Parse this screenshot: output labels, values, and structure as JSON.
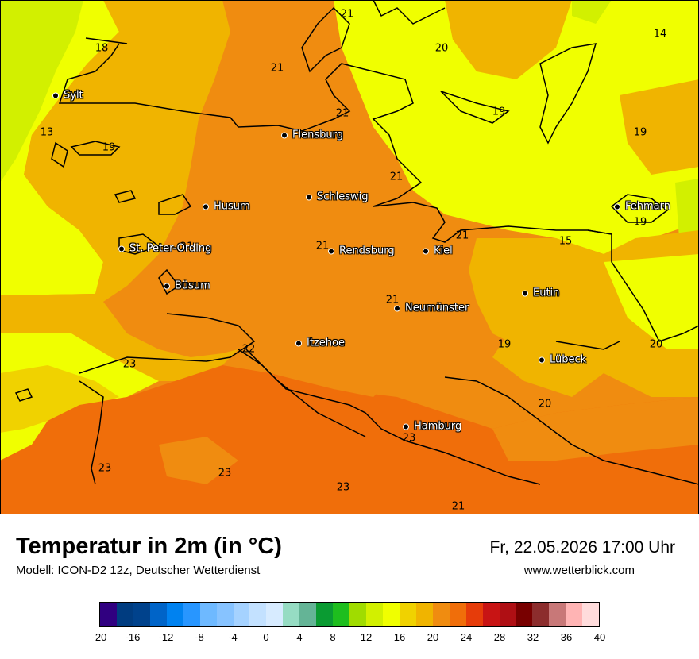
{
  "title": "Temperatur in 2m (in °C)",
  "subtitle": "Modell: ICON-D2 12z, Deutscher Wetterdienst",
  "datetime": "Fr, 22.05.2026 17:00 Uhr",
  "website": "www.wetterblick.com",
  "cities": [
    {
      "id": "sylt",
      "name": "Sylt"
    },
    {
      "id": "flensburg",
      "name": "Flensburg"
    },
    {
      "id": "schleswig",
      "name": "Schleswig"
    },
    {
      "id": "husum",
      "name": "Husum"
    },
    {
      "id": "fehmarn",
      "name": "Fehmarn"
    },
    {
      "id": "st-peter-ording",
      "name": "St. Peter-Ording"
    },
    {
      "id": "rendsburg",
      "name": "Rendsburg"
    },
    {
      "id": "kiel",
      "name": "Kiel"
    },
    {
      "id": "buesum",
      "name": "Büsum"
    },
    {
      "id": "eutin",
      "name": "Eutin"
    },
    {
      "id": "neumuenster",
      "name": "Neumünster"
    },
    {
      "id": "itzehoe",
      "name": "Itzehoe"
    },
    {
      "id": "luebeck",
      "name": "Lübeck"
    },
    {
      "id": "hamburg",
      "name": "Hamburg"
    }
  ],
  "temperature_labels": [
    "21",
    "18",
    "21",
    "20",
    "14",
    "21",
    "21",
    "19",
    "13",
    "19",
    "19",
    "21",
    "21",
    "21",
    "15",
    "21",
    "19",
    "22",
    "23",
    "20",
    "20",
    "23",
    "23",
    "23",
    "23",
    "21"
  ],
  "legend": {
    "colors": [
      "#300080",
      "#003c80",
      "#00428c",
      "#0064c8",
      "#0082f0",
      "#2896ff",
      "#6eb9ff",
      "#87c3ff",
      "#a5d2ff",
      "#c3e1ff",
      "#d7ebff",
      "#96dcc3",
      "#64b496",
      "#0a9b32",
      "#1ebe1e",
      "#a0dc00",
      "#d2f000",
      "#f0ff00",
      "#f0d200",
      "#f0b400",
      "#f08c10",
      "#f06e0a",
      "#e63c0a",
      "#c81414",
      "#af0f14",
      "#780000",
      "#8c2d2d",
      "#c87878",
      "#ffb4b4",
      "#ffdcdc"
    ],
    "ticks": [
      "-20",
      "-16",
      "-12",
      "-8",
      "-4",
      "0",
      "4",
      "8",
      "12",
      "16",
      "20",
      "24",
      "28",
      "32",
      "36",
      "40"
    ]
  }
}
